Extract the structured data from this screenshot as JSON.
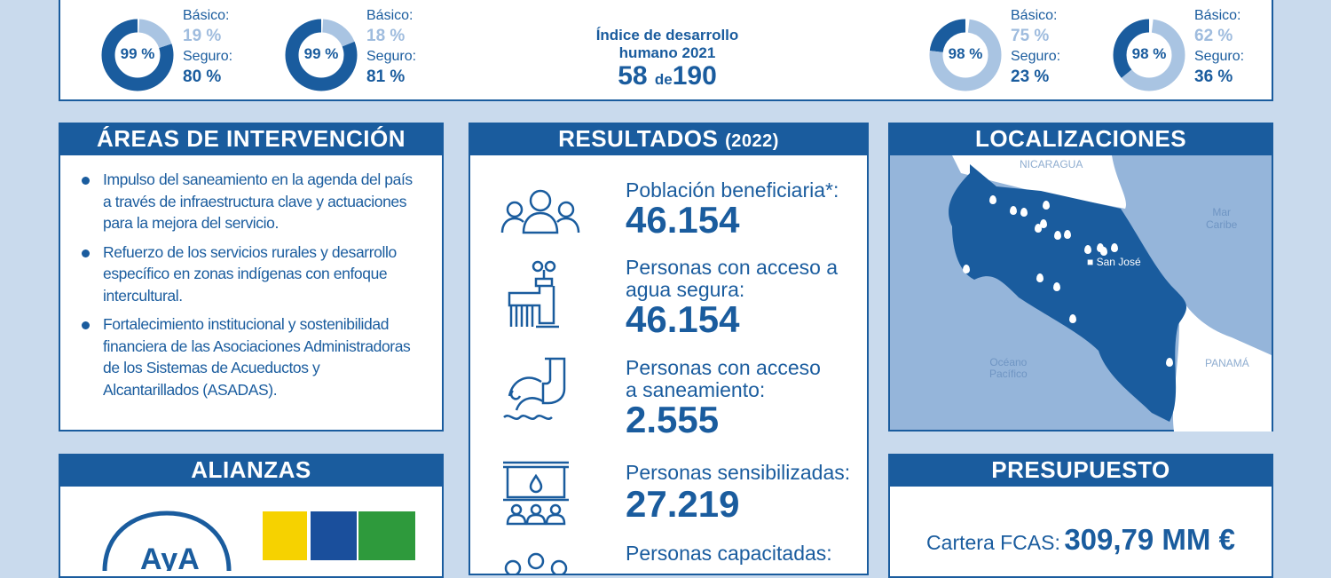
{
  "top": {
    "donuts": [
      {
        "total": "99 %",
        "basic_label": "Básico:",
        "basic": "19 %",
        "safe_label": "Seguro:",
        "safe": "80 %",
        "basic_pct": 19,
        "safe_pct": 80
      },
      {
        "total": "99 %",
        "basic_label": "Básico:",
        "basic": "18 %",
        "safe_label": "Seguro:",
        "safe": "81 %",
        "basic_pct": 18,
        "safe_pct": 81
      },
      {
        "total": "98 %",
        "basic_label": "Básico:",
        "basic": "75 %",
        "safe_label": "Seguro:",
        "safe": "23 %",
        "basic_pct": 75,
        "safe_pct": 23
      },
      {
        "total": "98 %",
        "basic_label": "Básico:",
        "basic": "62 %",
        "safe_label": "Seguro:",
        "safe": "36 %",
        "basic_pct": 62,
        "safe_pct": 36
      }
    ],
    "idh_title_1": "Índice de desarrollo",
    "idh_title_2": "humano 2021",
    "idh_rank": "58",
    "idh_de": "de",
    "idh_total": "190"
  },
  "areas": {
    "title": "ÁREAS DE INTERVENCIÓN",
    "items": [
      "Impulso del saneamiento en la agenda del país a través de infraestructura clave y  actuaciones para la mejora del servicio.",
      "Refuerzo de los servicios rurales y desarrollo específico en zonas indígenas con enfoque intercultural.",
      "Fortalecimiento institucional y sostenibilidad financiera de las Asociaciones Administradoras de los Sistemas de Acueductos y Alcantarillados (ASADAS)."
    ]
  },
  "resultados": {
    "title": "RESULTADOS",
    "year": "(2022)",
    "items": [
      {
        "label": "Población beneficiaria*:",
        "value": "46.154",
        "icon": "people-group-icon"
      },
      {
        "label": "Personas con acceso a agua segura:",
        "value": "46.154",
        "icon": "water-tap-icon"
      },
      {
        "label": "Personas con acceso a saneamiento:",
        "value": "2.555",
        "icon": "sewer-pipe-icon"
      },
      {
        "label": "Personas sensibilizadas:",
        "value": "27.219",
        "icon": "presentation-icon"
      },
      {
        "label": "Personas capacitadas:",
        "value": "",
        "icon": "training-icon"
      }
    ]
  },
  "localizaciones": {
    "title": "LOCALIZACIONES",
    "nicaragua": "NICARAGUA",
    "mar1": "Mar",
    "mar2": "Caribe",
    "san_jose": "San José",
    "oceano1": "Océano",
    "oceano2": "Pacífico",
    "panama": "PANAMÁ"
  },
  "alianzas": {
    "title": "ALIANZAS",
    "logo_text": "AyA"
  },
  "presupuesto": {
    "title": "PRESUPUESTO",
    "cartera_label": "Cartera FCAS:",
    "cartera_value": "309,79 MM €"
  },
  "colors": {
    "primary": "#1a5c9e",
    "light": "#a9c4e2",
    "background": "#c9daed"
  }
}
